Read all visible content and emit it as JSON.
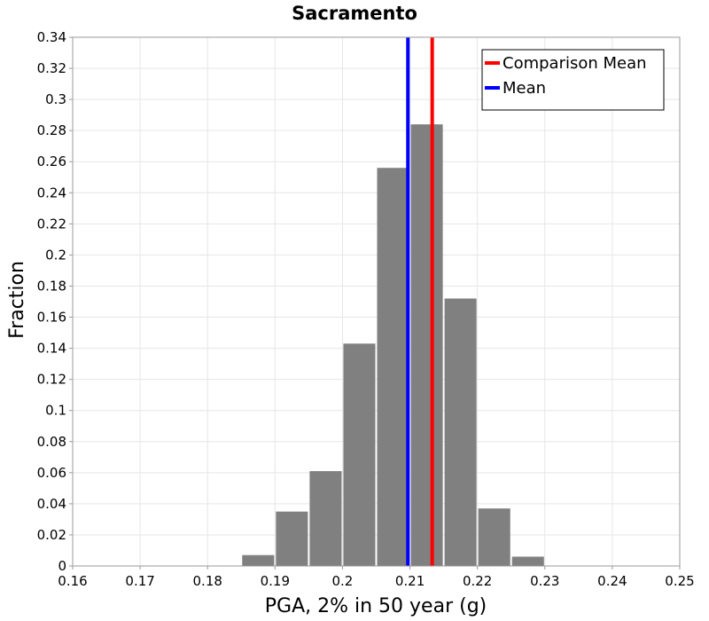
{
  "chart_data": {
    "type": "bar",
    "title": "Sacramento",
    "xlabel": "PGA, 2% in 50 year (g)",
    "ylabel": "Fraction",
    "xlim": [
      0.16,
      0.25
    ],
    "ylim": [
      0,
      0.34
    ],
    "xticks": [
      "0.16",
      "0.17",
      "0.18",
      "0.19",
      "0.2",
      "0.21",
      "0.22",
      "0.23",
      "0.24",
      "0.25"
    ],
    "yticks": [
      "0",
      "0.02",
      "0.04",
      "0.06",
      "0.08",
      "0.1",
      "0.12",
      "0.14",
      "0.16",
      "0.18",
      "0.2",
      "0.22",
      "0.24",
      "0.26",
      "0.28",
      "0.3",
      "0.32",
      "0.34"
    ],
    "grid": true,
    "bin_width": 0.01,
    "bins": [
      {
        "center": 0.1875,
        "value": 0.007
      },
      {
        "center": 0.1925,
        "value": 0.035
      },
      {
        "center": 0.1975,
        "value": 0.061
      },
      {
        "center": 0.2025,
        "value": 0.143
      },
      {
        "center": 0.2075,
        "value": 0.256
      },
      {
        "center": 0.2125,
        "value": 0.284
      },
      {
        "center": 0.2175,
        "value": 0.172
      },
      {
        "center": 0.2225,
        "value": 0.037
      },
      {
        "center": 0.2275,
        "value": 0.006
      }
    ],
    "bar_color": "#808080",
    "lines": [
      {
        "name": "Comparison Mean",
        "x": 0.2133,
        "color": "#ff0000"
      },
      {
        "name": "Mean",
        "x": 0.2097,
        "color": "#0000ff"
      }
    ],
    "legend_position": "top-right"
  }
}
